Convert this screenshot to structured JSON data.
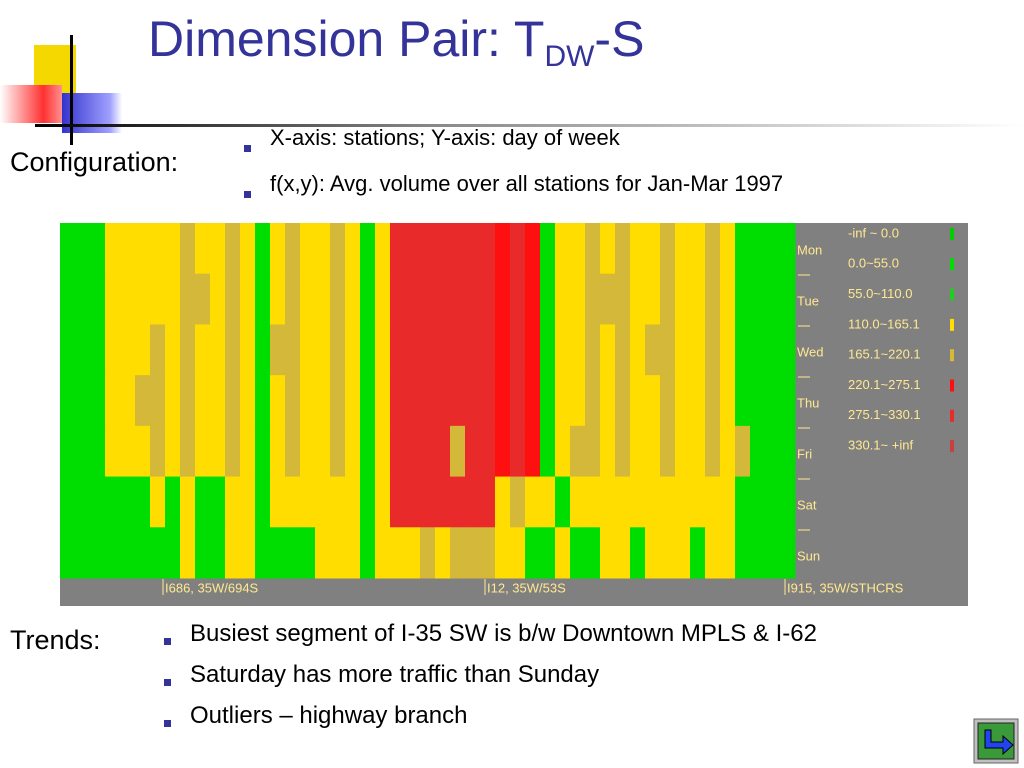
{
  "title": {
    "main": "Dimension Pair: T",
    "sub": "DW",
    "suffix": "-S"
  },
  "configuration": {
    "label": "Configuration:",
    "bullets": [
      "X-axis: stations; Y-axis: day of week",
      "f(x,y): Avg. volume over all stations for Jan-Mar 1997"
    ]
  },
  "heatmap": {
    "days": [
      "Mon",
      "Tue",
      "Wed",
      "Thu",
      "Fri",
      "Sat",
      "Sun"
    ],
    "stations": [
      "I686, 35W/694S",
      "I12, 35W/53S",
      "I915, 35W/STHCRS"
    ],
    "bins": [
      {
        "label": "-inf ~ 0.0",
        "color": "#00cc00"
      },
      {
        "label": "0.0~55.0",
        "color": "#00dd00"
      },
      {
        "label": "55.0~110.0",
        "color": "#22cc22"
      },
      {
        "label": "110.0~165.1",
        "color": "#ffdd00"
      },
      {
        "label": "165.1~220.1",
        "color": "#d4b83a"
      },
      {
        "label": "220.1~275.1",
        "color": "#ff1010"
      },
      {
        "label": "275.1~330.1",
        "color": "#e82a2a"
      },
      {
        "label": "330.1~ +inf",
        "color": "#c84040"
      }
    ],
    "rows": [
      [
        1,
        1,
        1,
        3,
        3,
        3,
        3,
        3,
        4,
        3,
        3,
        4,
        3,
        1,
        3,
        4,
        3,
        3,
        4,
        3,
        1,
        3,
        6,
        6,
        6,
        6,
        6,
        6,
        6,
        5,
        6,
        5,
        1,
        3,
        3,
        4,
        3,
        4,
        3,
        3,
        4,
        3,
        3,
        4,
        3,
        1,
        1,
        1,
        1
      ],
      [
        1,
        1,
        1,
        3,
        3,
        3,
        3,
        3,
        4,
        4,
        3,
        4,
        3,
        1,
        3,
        4,
        3,
        3,
        4,
        3,
        1,
        3,
        6,
        6,
        6,
        6,
        6,
        6,
        6,
        5,
        6,
        5,
        1,
        3,
        3,
        4,
        4,
        4,
        3,
        3,
        4,
        3,
        3,
        4,
        3,
        1,
        1,
        1,
        1
      ],
      [
        1,
        1,
        1,
        3,
        3,
        3,
        4,
        3,
        4,
        3,
        3,
        4,
        3,
        1,
        4,
        4,
        3,
        3,
        4,
        3,
        1,
        3,
        6,
        6,
        6,
        6,
        6,
        6,
        6,
        5,
        6,
        5,
        1,
        3,
        3,
        4,
        3,
        4,
        3,
        4,
        4,
        3,
        3,
        4,
        3,
        1,
        1,
        1,
        1
      ],
      [
        1,
        1,
        1,
        3,
        3,
        4,
        4,
        3,
        4,
        3,
        3,
        4,
        3,
        1,
        3,
        4,
        3,
        3,
        4,
        3,
        1,
        3,
        6,
        6,
        6,
        6,
        6,
        6,
        6,
        5,
        6,
        5,
        1,
        3,
        3,
        4,
        3,
        4,
        3,
        3,
        4,
        3,
        3,
        4,
        3,
        1,
        1,
        1,
        1
      ],
      [
        1,
        1,
        1,
        3,
        3,
        3,
        4,
        3,
        4,
        3,
        3,
        4,
        3,
        1,
        3,
        4,
        3,
        3,
        4,
        3,
        1,
        3,
        6,
        6,
        6,
        6,
        4,
        6,
        6,
        5,
        6,
        5,
        1,
        3,
        4,
        4,
        3,
        4,
        3,
        3,
        4,
        3,
        3,
        4,
        3,
        4,
        1,
        1,
        1
      ],
      [
        1,
        1,
        1,
        1,
        1,
        1,
        3,
        1,
        3,
        1,
        1,
        3,
        3,
        1,
        3,
        3,
        3,
        3,
        3,
        3,
        1,
        3,
        6,
        6,
        6,
        6,
        6,
        6,
        6,
        3,
        4,
        3,
        3,
        1,
        3,
        3,
        3,
        3,
        3,
        3,
        3,
        3,
        3,
        3,
        3,
        1,
        1,
        1,
        1
      ],
      [
        1,
        1,
        1,
        1,
        1,
        1,
        1,
        1,
        3,
        1,
        1,
        3,
        3,
        1,
        1,
        1,
        1,
        3,
        3,
        3,
        1,
        3,
        3,
        3,
        4,
        3,
        4,
        4,
        4,
        3,
        3,
        1,
        1,
        3,
        1,
        1,
        3,
        3,
        1,
        3,
        3,
        3,
        1,
        3,
        3,
        1,
        1,
        1,
        1
      ]
    ]
  },
  "trends": {
    "label": "Trends:",
    "bullets": [
      "Busiest segment of I-35 SW is b/w Downtown MPLS & I-62",
      "Saturday has more traffic than Sunday",
      "Outliers – highway branch"
    ]
  }
}
